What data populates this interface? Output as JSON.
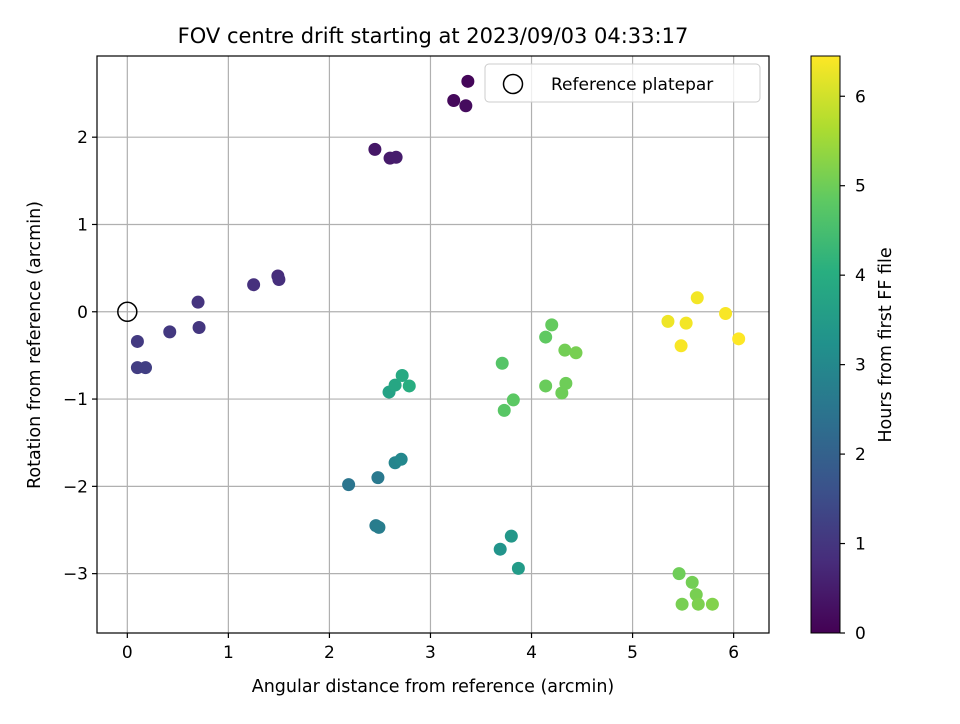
{
  "chart_data": {
    "type": "scatter",
    "title": "FOV centre drift starting at 2023/09/03 04:33:17",
    "xlabel": "Angular distance from reference (arcmin)",
    "ylabel": "Rotation from reference (arcmin)",
    "xlim": [
      -0.3,
      6.35
    ],
    "ylim": [
      -3.68,
      2.93
    ],
    "x_ticks": [
      0,
      1,
      2,
      3,
      4,
      5,
      6
    ],
    "y_ticks": [
      -3,
      -2,
      -1,
      0,
      1,
      2
    ],
    "grid": true,
    "legend": {
      "placement": "top-right",
      "entries": [
        "Reference platepar"
      ]
    },
    "reference_point": {
      "x": 0,
      "y": 0
    },
    "colorbar": {
      "label": "Hours from first FF file",
      "range": [
        0,
        6.45
      ],
      "ticks": [
        0,
        1,
        2,
        3,
        4,
        5,
        6
      ],
      "colormap": "viridis"
    },
    "points": [
      {
        "x": 3.37,
        "y": 2.64,
        "c": 0.1
      },
      {
        "x": 3.23,
        "y": 2.42,
        "c": 0.15
      },
      {
        "x": 3.35,
        "y": 2.36,
        "c": 0.2
      },
      {
        "x": 2.45,
        "y": 1.86,
        "c": 0.4
      },
      {
        "x": 2.6,
        "y": 1.76,
        "c": 0.45
      },
      {
        "x": 2.66,
        "y": 1.77,
        "c": 0.5
      },
      {
        "x": 1.49,
        "y": 0.41,
        "c": 0.8
      },
      {
        "x": 1.5,
        "y": 0.37,
        "c": 0.85
      },
      {
        "x": 1.25,
        "y": 0.31,
        "c": 0.9
      },
      {
        "x": 0.7,
        "y": 0.11,
        "c": 0.95
      },
      {
        "x": 0.71,
        "y": -0.18,
        "c": 1.0
      },
      {
        "x": 0.42,
        "y": -0.23,
        "c": 1.05
      },
      {
        "x": 0.1,
        "y": -0.34,
        "c": 1.1
      },
      {
        "x": 0.1,
        "y": -0.64,
        "c": 1.15
      },
      {
        "x": 0.18,
        "y": -0.64,
        "c": 1.2
      },
      {
        "x": 2.19,
        "y": -1.98,
        "c": 2.5
      },
      {
        "x": 2.48,
        "y": -1.9,
        "c": 2.6
      },
      {
        "x": 2.46,
        "y": -2.45,
        "c": 2.65
      },
      {
        "x": 2.49,
        "y": -2.47,
        "c": 2.7
      },
      {
        "x": 2.65,
        "y": -1.73,
        "c": 2.9
      },
      {
        "x": 2.71,
        "y": -1.69,
        "c": 3.0
      },
      {
        "x": 3.69,
        "y": -2.72,
        "c": 3.3
      },
      {
        "x": 3.8,
        "y": -2.57,
        "c": 3.4
      },
      {
        "x": 3.87,
        "y": -2.94,
        "c": 3.5
      },
      {
        "x": 2.59,
        "y": -0.92,
        "c": 3.7
      },
      {
        "x": 2.65,
        "y": -0.84,
        "c": 3.8
      },
      {
        "x": 2.72,
        "y": -0.73,
        "c": 3.9
      },
      {
        "x": 2.79,
        "y": -0.85,
        "c": 4.0
      },
      {
        "x": 3.71,
        "y": -0.59,
        "c": 4.7
      },
      {
        "x": 3.73,
        "y": -1.13,
        "c": 4.75
      },
      {
        "x": 3.82,
        "y": -1.01,
        "c": 4.8
      },
      {
        "x": 4.14,
        "y": -0.29,
        "c": 4.85
      },
      {
        "x": 4.2,
        "y": -0.15,
        "c": 4.9
      },
      {
        "x": 4.14,
        "y": -0.85,
        "c": 4.95
      },
      {
        "x": 4.3,
        "y": -0.93,
        "c": 5.0
      },
      {
        "x": 4.34,
        "y": -0.82,
        "c": 5.0
      },
      {
        "x": 4.33,
        "y": -0.44,
        "c": 5.05
      },
      {
        "x": 4.44,
        "y": -0.47,
        "c": 5.1
      },
      {
        "x": 5.46,
        "y": -3.0,
        "c": 5.0
      },
      {
        "x": 5.59,
        "y": -3.1,
        "c": 5.05
      },
      {
        "x": 5.63,
        "y": -3.24,
        "c": 5.1
      },
      {
        "x": 5.49,
        "y": -3.35,
        "c": 5.1
      },
      {
        "x": 5.65,
        "y": -3.35,
        "c": 5.15
      },
      {
        "x": 5.79,
        "y": -3.35,
        "c": 5.2
      },
      {
        "x": 5.35,
        "y": -0.11,
        "c": 6.3
      },
      {
        "x": 5.64,
        "y": 0.16,
        "c": 6.35
      },
      {
        "x": 5.53,
        "y": -0.13,
        "c": 6.35
      },
      {
        "x": 5.48,
        "y": -0.39,
        "c": 6.4
      },
      {
        "x": 5.92,
        "y": -0.02,
        "c": 6.4
      },
      {
        "x": 6.05,
        "y": -0.31,
        "c": 6.45
      }
    ]
  }
}
